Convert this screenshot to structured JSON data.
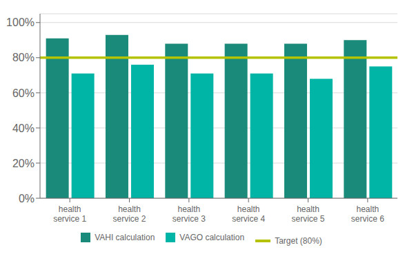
{
  "chart_data": {
    "type": "bar",
    "categories": [
      "health\nservice 1",
      "health\nservice 2",
      "health\nservice 3",
      "health\nservice 4",
      "health\nservice 5",
      "health\nservice 6"
    ],
    "series": [
      {
        "name": "VAHI calculation",
        "color": "#1a8a7a",
        "values": [
          0.91,
          0.93,
          0.88,
          0.88,
          0.88,
          0.9
        ]
      },
      {
        "name": "VAGO calculation",
        "color": "#00b5a5",
        "values": [
          0.71,
          0.76,
          0.71,
          0.71,
          0.68,
          0.75
        ]
      }
    ],
    "target": {
      "name": "Target (80%)",
      "value": 0.8,
      "color": "#b5c200"
    },
    "ylim": [
      0,
      1.05
    ],
    "yticks": [
      {
        "value": 0,
        "label": "0%"
      },
      {
        "value": 0.2,
        "label": "20%"
      },
      {
        "value": 0.4,
        "label": "40%"
      },
      {
        "value": 0.6,
        "label": "60%"
      },
      {
        "value": 0.8,
        "label": "80%"
      },
      {
        "value": 1.0,
        "label": "100%"
      }
    ],
    "grid": true,
    "legend": "bottom"
  }
}
